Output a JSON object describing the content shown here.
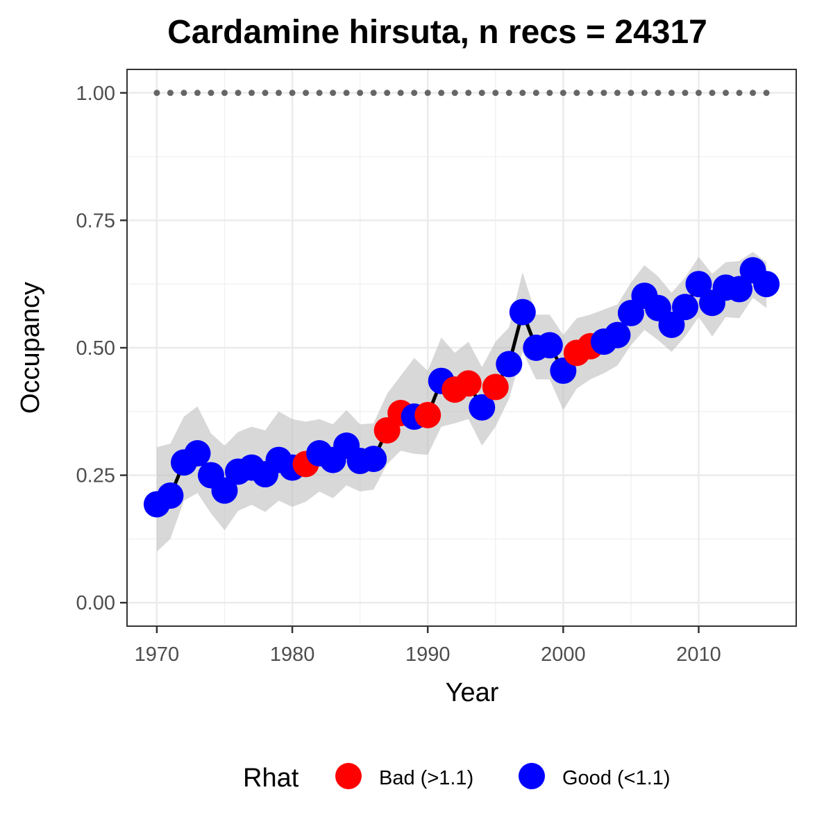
{
  "chart_data": {
    "type": "line",
    "title": "Cardamine hirsuta, n recs = 24317",
    "xlabel": "Year",
    "ylabel": "Occupancy",
    "xlim": [
      1967.8,
      2017.2
    ],
    "ylim": [
      -0.046,
      1.046
    ],
    "x_ticks": [
      1970,
      1980,
      1990,
      2000,
      2010
    ],
    "x_tick_labels": [
      "1970",
      "1980",
      "1990",
      "2000",
      "2010"
    ],
    "y_ticks": [
      0,
      0.25,
      0.5,
      0.75,
      1.0
    ],
    "y_tick_labels": [
      "0.00",
      "0.25",
      "0.50",
      "0.75",
      "1.00"
    ],
    "grid": true,
    "legend_position": "bottom",
    "legend": {
      "title": "Rhat",
      "entries": [
        {
          "key": "bad",
          "label": "Bad (>1.1)",
          "color": "#ff0000"
        },
        {
          "key": "good",
          "label": "Good (<1.1)",
          "color": "#0000ff"
        }
      ]
    },
    "reference_line": {
      "y": 1.0,
      "style": "dotted",
      "color": "#666666"
    },
    "band_color": "#bebebe",
    "line_color": "#000000",
    "x": [
      1970,
      1971,
      1972,
      1973,
      1974,
      1975,
      1976,
      1977,
      1978,
      1979,
      1980,
      1981,
      1982,
      1983,
      1984,
      1985,
      1986,
      1987,
      1988,
      1989,
      1990,
      1991,
      1992,
      1993,
      1994,
      1995,
      1996,
      1997,
      1998,
      1999,
      2000,
      2001,
      2002,
      2003,
      2004,
      2005,
      2006,
      2007,
      2008,
      2009,
      2010,
      2011,
      2012,
      2013,
      2014,
      2015
    ],
    "values": [
      0.193,
      0.21,
      0.275,
      0.293,
      0.25,
      0.22,
      0.257,
      0.265,
      0.252,
      0.28,
      0.265,
      0.272,
      0.293,
      0.28,
      0.308,
      0.278,
      0.282,
      0.338,
      0.372,
      0.365,
      0.368,
      0.435,
      0.418,
      0.43,
      0.383,
      0.423,
      0.468,
      0.57,
      0.5,
      0.505,
      0.455,
      0.49,
      0.503,
      0.512,
      0.525,
      0.568,
      0.602,
      0.578,
      0.545,
      0.58,
      0.625,
      0.588,
      0.618,
      0.615,
      0.652,
      0.625
    ],
    "lower": [
      0.1,
      0.125,
      0.2,
      0.215,
      0.175,
      0.142,
      0.18,
      0.192,
      0.178,
      0.2,
      0.188,
      0.198,
      0.218,
      0.205,
      0.23,
      0.218,
      0.222,
      0.272,
      0.298,
      0.292,
      0.29,
      0.345,
      0.352,
      0.36,
      0.308,
      0.345,
      0.4,
      0.492,
      0.438,
      0.438,
      0.378,
      0.42,
      0.438,
      0.45,
      0.465,
      0.505,
      0.535,
      0.515,
      0.492,
      0.522,
      0.56,
      0.522,
      0.56,
      0.558,
      0.598,
      0.578
    ],
    "upper": [
      0.305,
      0.312,
      0.365,
      0.385,
      0.332,
      0.308,
      0.335,
      0.345,
      0.338,
      0.375,
      0.36,
      0.355,
      0.36,
      0.35,
      0.378,
      0.35,
      0.352,
      0.41,
      0.445,
      0.48,
      0.455,
      0.52,
      0.49,
      0.512,
      0.462,
      0.512,
      0.54,
      0.648,
      0.565,
      0.565,
      0.525,
      0.558,
      0.565,
      0.575,
      0.585,
      0.628,
      0.662,
      0.64,
      0.608,
      0.638,
      0.678,
      0.645,
      0.668,
      0.67,
      0.688,
      0.668
    ],
    "rhat": [
      "good",
      "good",
      "good",
      "good",
      "good",
      "good",
      "good",
      "good",
      "good",
      "good",
      "good",
      "bad",
      "good",
      "good",
      "good",
      "good",
      "good",
      "bad",
      "bad",
      "good",
      "bad",
      "good",
      "bad",
      "bad",
      "good",
      "bad",
      "good",
      "good",
      "good",
      "good",
      "good",
      "bad",
      "bad",
      "good",
      "good",
      "good",
      "good",
      "good",
      "good",
      "good",
      "good",
      "good",
      "good",
      "good",
      "good",
      "good"
    ]
  }
}
